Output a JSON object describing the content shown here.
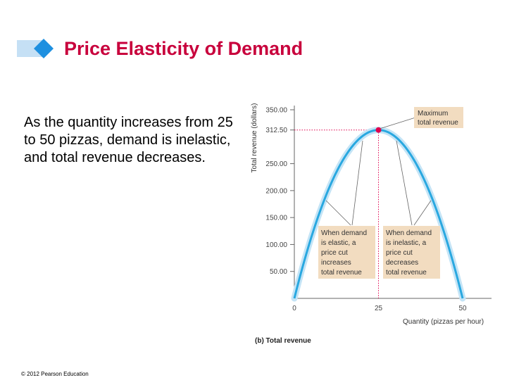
{
  "slide": {
    "title": "Price Elasticity of Demand",
    "body": "As the quantity increases from 25 to 50 pizzas, demand is inelastic, and total revenue decreases.",
    "copyright": "© 2012 Pearson Education"
  },
  "colors": {
    "title": "#c8003c",
    "curve": "#29a8e0",
    "curve_glow": "#c4e4f6",
    "highlight": "#e0004d",
    "annotation_box": "#f2dcc0",
    "title_deco": "#c5e0f5",
    "title_diamond": "#1e90e0"
  },
  "chart_data": {
    "type": "line",
    "xlabel": "Quantity (pizzas per hour)",
    "ylabel": "Total revenue (dollars)",
    "caption": "(b) Total revenue",
    "xlim": [
      0,
      50
    ],
    "ylim": [
      0,
      350
    ],
    "x_ticks": [
      {
        "value": 0,
        "label": "0"
      },
      {
        "value": 25,
        "label": "25"
      },
      {
        "value": 50,
        "label": "50"
      }
    ],
    "y_ticks": [
      {
        "value": 50,
        "label": "50.00"
      },
      {
        "value": 100,
        "label": "100.00"
      },
      {
        "value": 150,
        "label": "150.00"
      },
      {
        "value": 200,
        "label": "200.00"
      },
      {
        "value": 250,
        "label": "250.00"
      },
      {
        "value": 312.5,
        "label": "312.50"
      },
      {
        "value": 350,
        "label": "350.00"
      }
    ],
    "series": [
      {
        "x": [
          0,
          5,
          10,
          15,
          20,
          25,
          30,
          35,
          40,
          45,
          50
        ],
        "y": [
          0,
          112.5,
          200,
          262.5,
          300,
          312.5,
          300,
          262.5,
          200,
          112.5,
          0
        ]
      }
    ],
    "highlight_point": {
      "x": 25,
      "y": 312.5
    },
    "annotations": {
      "maximum": [
        "Maximum",
        "total revenue"
      ],
      "elastic": [
        "When demand",
        "is elastic, a",
        "price cut",
        "increases",
        "total revenue"
      ],
      "inelastic": [
        "When demand",
        "is inelastic, a",
        "price cut",
        "decreases",
        "total revenue"
      ]
    }
  }
}
